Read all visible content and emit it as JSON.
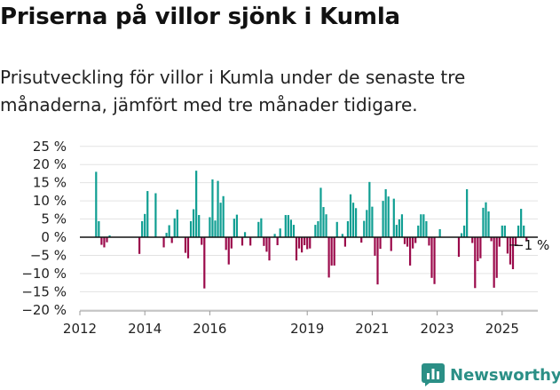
{
  "header": {
    "title": "Priserna på villor sjönk i Kumla",
    "subtitle": "Prisutveckling för villor i Kumla under de senaste tre månaderna, jämfört med tre månader tidigare."
  },
  "brand": {
    "name": "Newsworthy",
    "logo_icon": "bar-chart-logo-icon",
    "color": "#2b8f86"
  },
  "colors": {
    "positive": "#0f9e92",
    "negative": "#9b0a4b"
  },
  "chart_data": {
    "type": "bar",
    "title": "",
    "xlabel": "",
    "ylabel": "",
    "ylim": [
      -20,
      25
    ],
    "y_ticks": [
      -20,
      -15,
      -10,
      -5,
      0,
      5,
      10,
      15,
      20,
      25
    ],
    "y_tick_labels": [
      "−20 %",
      "−15 %",
      "−10 %",
      "−5 %",
      "0 %",
      "5 %",
      "10 %",
      "15 %",
      "20 %",
      "25 %"
    ],
    "x_ticks": [
      "2012-01",
      "2014-01",
      "2016-01",
      "2019-01",
      "2021-01",
      "2023-01",
      "2025-01"
    ],
    "x_tick_labels": [
      "2012",
      "2014",
      "2016",
      "2019",
      "2021",
      "2023",
      "2025"
    ],
    "grid": "horizontal",
    "legend": "none",
    "annotation": {
      "date": "2025-07",
      "text": "−1 %"
    },
    "series": [
      {
        "start": "2012-01",
        "frequency": "monthly",
        "values": [
          null,
          null,
          null,
          null,
          null,
          null,
          18,
          4.4,
          -2.1,
          -2.8,
          -1.4,
          0.5,
          0,
          0,
          0,
          0,
          0,
          0,
          0,
          0,
          0,
          0,
          -4.6,
          4.4,
          6.4,
          12.7,
          0,
          0,
          12.1,
          0,
          0,
          -2.8,
          1.2,
          3.3,
          -1.6,
          5.2,
          7.6,
          0,
          0,
          -4.3,
          -5.8,
          4.4,
          7.7,
          18.3,
          6.1,
          -2.1,
          -14.1,
          0,
          5.5,
          15.9,
          4.6,
          15.5,
          9.5,
          11.3,
          -3.5,
          -7.5,
          -3.1,
          5.1,
          6.2,
          0,
          -2.3,
          1.4,
          0,
          -2.3,
          0,
          0,
          4.2,
          5.2,
          -2.4,
          -4,
          -6.4,
          0,
          0.9,
          -2.2,
          2.4,
          0,
          6.1,
          6.1,
          4.8,
          3.4,
          -6.4,
          -3.1,
          -4.2,
          -2.2,
          -3.3,
          -3.1,
          0,
          3.4,
          4.4,
          13.6,
          8.3,
          6.3,
          -11.1,
          -7.8,
          -7.8,
          4.2,
          0,
          0.9,
          -2.6,
          4.4,
          11.8,
          9.5,
          8,
          0,
          -1.5,
          4.5,
          7.5,
          15.2,
          8.4,
          -5.1,
          -13,
          -3.2,
          10,
          13.2,
          11.2,
          -3.8,
          10.6,
          3.4,
          4.9,
          6.3,
          -1.9,
          -2.6,
          -7.8,
          -3.1,
          -1.6,
          3.2,
          6.3,
          6.3,
          4.4,
          -2.3,
          -11.2,
          -12.9,
          0,
          2.2,
          0,
          0,
          0,
          0,
          0,
          0,
          -5.4,
          1.1,
          3.2,
          13.2,
          0,
          -1.6,
          -14,
          -6.6,
          -5.8,
          8.1,
          9.6,
          7.1,
          -1.1,
          -13.9,
          -11.2,
          -2.6,
          3.2,
          3.2,
          -4.5,
          -7.5,
          -8.8,
          -2.3,
          3.2,
          7.8,
          3.2,
          -1
        ]
      }
    ]
  }
}
